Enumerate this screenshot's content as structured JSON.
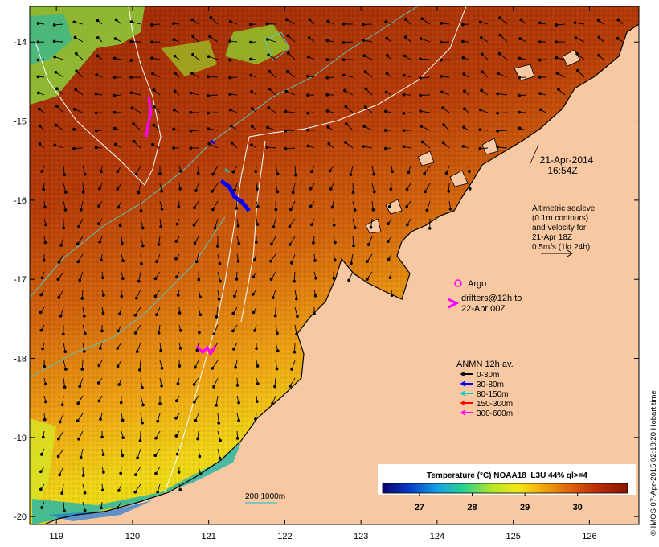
{
  "map": {
    "timestamp_date": "21-Apr-2014",
    "timestamp_time": "16:54Z",
    "lon_ticks": [
      "119",
      "120",
      "121",
      "122",
      "123",
      "124",
      "125",
      "126"
    ],
    "lat_ticks": [
      "-14",
      "-15",
      "-16",
      "-17",
      "-18",
      "-19",
      "-20"
    ],
    "lon_range": [
      118.65,
      126.65
    ],
    "lat_range": [
      -13.55,
      -20.1
    ],
    "colors": {
      "land": "#f7c8a1",
      "sst_warm": "#a02806",
      "sst_mid": "#e06a0e",
      "sst_cool": "#f2d611",
      "contour": "#ffffff",
      "isobath": "#55c6c0",
      "argo": "#ff00ff",
      "drifter": "#ff00ff"
    }
  },
  "altimetry_note": {
    "lines": [
      "Altimetric sealevel",
      "(0.1m contours)",
      "and velocity for",
      "21-Apr 18Z",
      "0.5m/s (1kt 24h)"
    ]
  },
  "argo_label": "Argo",
  "drifters_label": [
    "drifters@12h to",
    "22-Apr 00Z"
  ],
  "anmn_legend": {
    "title": "ANMN 12h av.",
    "items": [
      {
        "label": "0-30m",
        "color": "#000000"
      },
      {
        "label": "30-80m",
        "color": "#0000ff"
      },
      {
        "label": "80-150m",
        "color": "#00cccc"
      },
      {
        "label": "150-300m",
        "color": "#ff0000"
      },
      {
        "label": "300-600m",
        "color": "#ff00ff"
      }
    ]
  },
  "isobath_legend": "200  1000m",
  "colorbar": {
    "title": "Temperature (°C) NOAA18_L3U 44% ql>=4",
    "ticks": [
      "27",
      "28",
      "29",
      "30"
    ],
    "gradient": [
      "#08006b",
      "#0a3cc8",
      "#14a0e6",
      "#28d28c",
      "#b4e628",
      "#f5e614",
      "#f0a00a",
      "#dc5a08",
      "#b42806",
      "#8c1404"
    ]
  },
  "credit": "© IMOS 07-Apr-2015 02:18:20 Hobart time"
}
